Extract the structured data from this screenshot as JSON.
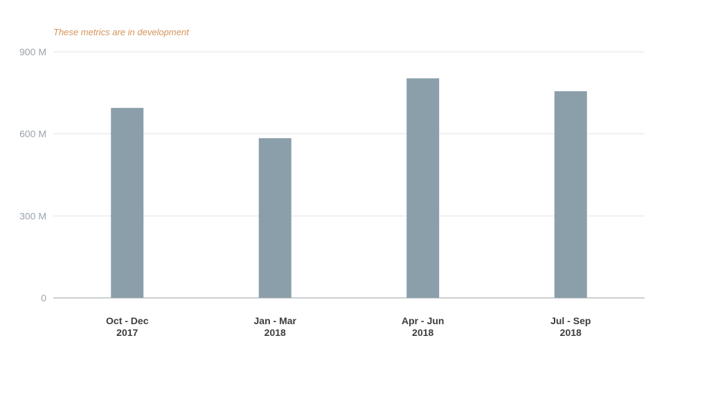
{
  "note": "These metrics are in development",
  "colors": {
    "bar": "#8a9fa9",
    "grid": "#e2e2e2",
    "axis": "#9aa0a6",
    "tick_text": "#9aa3ab",
    "category_text": "#3c3c3c",
    "note": "#d4935a"
  },
  "chart_data": {
    "type": "bar",
    "title": "",
    "xlabel": "",
    "ylabel": "",
    "categories": [
      [
        "Oct - Dec",
        "2017"
      ],
      [
        "Jan - Mar",
        "2018"
      ],
      [
        "Apr - Jun",
        "2018"
      ],
      [
        "Jul - Sep",
        "2018"
      ]
    ],
    "values": [
      695000000,
      584000000,
      803000000,
      756000000
    ],
    "ylim": [
      0,
      900000000
    ],
    "yticks": [
      {
        "value": 0,
        "label": "0"
      },
      {
        "value": 300000000,
        "label": "300 M"
      },
      {
        "value": 600000000,
        "label": "600 M"
      },
      {
        "value": 900000000,
        "label": "900 M"
      }
    ],
    "grid": true,
    "legend": "none"
  }
}
